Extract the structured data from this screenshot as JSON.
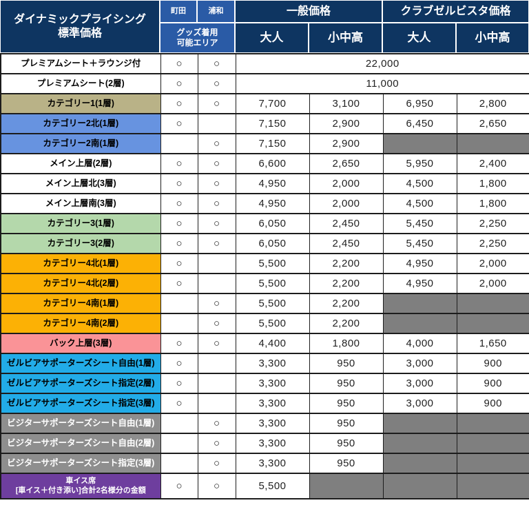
{
  "chart_data": {
    "type": "table",
    "title": "ダイナミックプライシング\n標準価格",
    "column_groups": {
      "general_price": "一般価格",
      "club_price": "クラブゼルビスタ価格"
    },
    "columns": {
      "machida": "町田",
      "urawa": "浦和",
      "goods_area": "グッズ着用\n可能エリア",
      "adult": "大人",
      "student": "小中高"
    },
    "mark": "○",
    "colors": {
      "header_navy": "#0e3561",
      "header_blue": "#2a5ba6",
      "white": "#ffffff",
      "khaki": "#b9b287",
      "blue": "#6793e0",
      "green": "#b4d8ab",
      "orange": "#fcb105",
      "pink": "#fa9397",
      "cyan": "#22ace8",
      "gray": "#8e8e8e",
      "purple": "#6e3e9e",
      "disabled": "#7f7f7f"
    },
    "rows": [
      {
        "label": "プレミアムシート＋ラウンジ付",
        "bg": "white",
        "machida": true,
        "urawa": true,
        "merged": "22,000"
      },
      {
        "label": "プレミアムシート(2層)",
        "bg": "white",
        "machida": true,
        "urawa": true,
        "merged": "11,000"
      },
      {
        "label": "カテゴリー1(1層)",
        "bg": "khaki",
        "machida": true,
        "urawa": true,
        "prices": [
          "7,700",
          "3,100",
          "6,950",
          "2,800"
        ]
      },
      {
        "label": "カテゴリー2北(1層)",
        "bg": "blue",
        "machida": true,
        "urawa": false,
        "prices": [
          "7,150",
          "2,900",
          "6,450",
          "2,650"
        ]
      },
      {
        "label": "カテゴリー2南(1層)",
        "bg": "blue",
        "machida": false,
        "urawa": true,
        "prices": [
          "7,150",
          "2,900",
          null,
          null
        ]
      },
      {
        "label": "メイン上層(2層)",
        "bg": "white",
        "machida": true,
        "urawa": true,
        "prices": [
          "6,600",
          "2,650",
          "5,950",
          "2,400"
        ]
      },
      {
        "label": "メイン上層北(3層)",
        "bg": "white",
        "machida": true,
        "urawa": true,
        "prices": [
          "4,950",
          "2,000",
          "4,500",
          "1,800"
        ]
      },
      {
        "label": "メイン上層南(3層)",
        "bg": "white",
        "machida": true,
        "urawa": true,
        "prices": [
          "4,950",
          "2,000",
          "4,500",
          "1,800"
        ]
      },
      {
        "label": "カテゴリー3(1層)",
        "bg": "green",
        "machida": true,
        "urawa": true,
        "prices": [
          "6,050",
          "2,450",
          "5,450",
          "2,250"
        ]
      },
      {
        "label": "カテゴリー3(2層)",
        "bg": "green",
        "machida": true,
        "urawa": true,
        "prices": [
          "6,050",
          "2,450",
          "5,450",
          "2,250"
        ]
      },
      {
        "label": "カテゴリー4北(1層)",
        "bg": "orange",
        "machida": true,
        "urawa": false,
        "prices": [
          "5,500",
          "2,200",
          "4,950",
          "2,000"
        ]
      },
      {
        "label": "カテゴリー4北(2層)",
        "bg": "orange",
        "machida": true,
        "urawa": false,
        "prices": [
          "5,500",
          "2,200",
          "4,950",
          "2,000"
        ]
      },
      {
        "label": "カテゴリー4南(1層)",
        "bg": "orange",
        "machida": false,
        "urawa": true,
        "prices": [
          "5,500",
          "2,200",
          null,
          null
        ]
      },
      {
        "label": "カテゴリー4南(2層)",
        "bg": "orange",
        "machida": false,
        "urawa": true,
        "prices": [
          "5,500",
          "2,200",
          null,
          null
        ]
      },
      {
        "label": "バック上層(3層)",
        "bg": "pink",
        "machida": true,
        "urawa": true,
        "prices": [
          "4,400",
          "1,800",
          "4,000",
          "1,650"
        ]
      },
      {
        "label": "ゼルビアサポーターズシート自由(1層)",
        "bg": "cyan",
        "machida": true,
        "urawa": false,
        "prices": [
          "3,300",
          "950",
          "3,000",
          "900"
        ]
      },
      {
        "label": "ゼルビアサポーターズシート指定(2層)",
        "bg": "cyan",
        "machida": true,
        "urawa": false,
        "prices": [
          "3,300",
          "950",
          "3,000",
          "900"
        ]
      },
      {
        "label": "ゼルビアサポーターズシート指定(3層)",
        "bg": "cyan",
        "machida": true,
        "urawa": false,
        "prices": [
          "3,300",
          "950",
          "3,000",
          "900"
        ]
      },
      {
        "label": "ビジターサポーターズシート自由(1層)",
        "bg": "gray",
        "fg": "#ffffff",
        "machida": false,
        "urawa": true,
        "prices": [
          "3,300",
          "950",
          null,
          null
        ]
      },
      {
        "label": "ビジターサポーターズシート自由(2層)",
        "bg": "gray",
        "fg": "#ffffff",
        "machida": false,
        "urawa": true,
        "prices": [
          "3,300",
          "950",
          null,
          null
        ]
      },
      {
        "label": "ビジターサポーターズシート指定(3層)",
        "bg": "gray",
        "fg": "#ffffff",
        "machida": false,
        "urawa": true,
        "prices": [
          "3,300",
          "950",
          null,
          null
        ]
      },
      {
        "label": "車イス席\n[車イス＋付き添い]合計2名様分の金額",
        "bg": "purple",
        "fg": "#ffffff",
        "machida": true,
        "urawa": true,
        "tall": true,
        "prices": [
          "5,500",
          null,
          null,
          null
        ]
      }
    ]
  }
}
